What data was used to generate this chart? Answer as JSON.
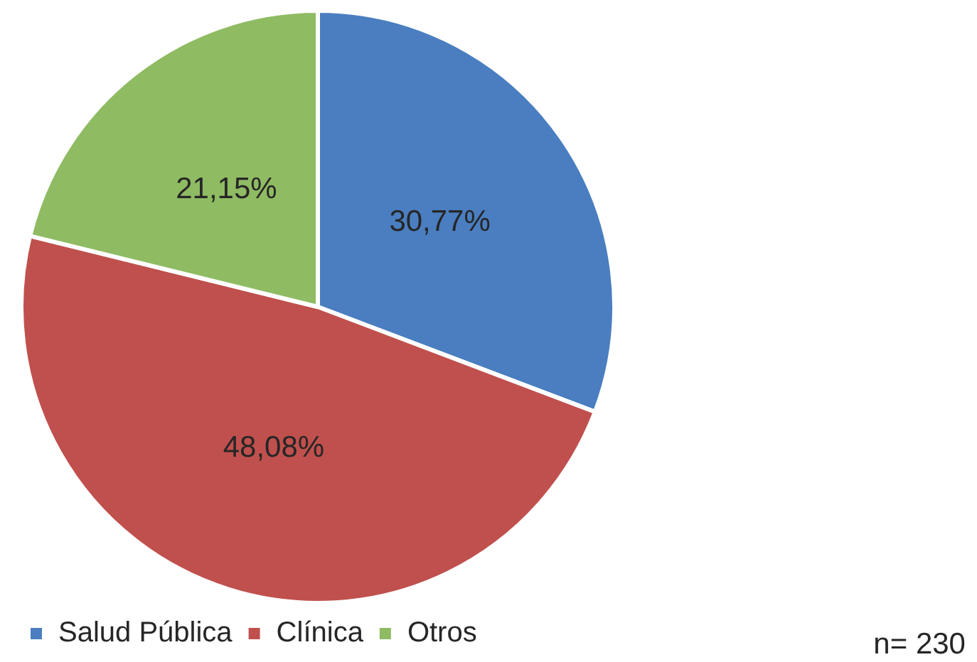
{
  "chart_data": {
    "type": "pie",
    "categories": [
      "Salud Pública",
      "Clínica",
      "Otros"
    ],
    "values": [
      30.77,
      48.08,
      21.15
    ],
    "colors": [
      "#4a7ec0",
      "#c0504d",
      "#8fbb63"
    ],
    "value_labels": [
      "30,77%",
      "48,08%",
      "21,15%"
    ],
    "legend": "bottom left",
    "annotations": [
      "n= 230"
    ]
  }
}
